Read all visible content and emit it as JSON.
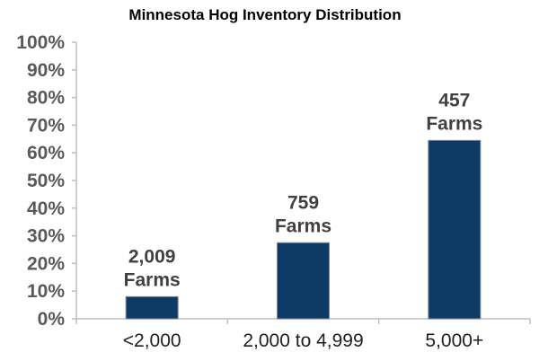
{
  "chart_data": {
    "type": "bar",
    "title": "Minnesota Hog Inventory Distribution",
    "xlabel": "",
    "ylabel": "",
    "categories": [
      "<2,000",
      "2,000 to 4,999",
      "5,000+"
    ],
    "values": [
      8,
      27.5,
      64.5
    ],
    "data_labels": [
      [
        "2,009",
        "Farms"
      ],
      [
        "759",
        "Farms"
      ],
      [
        "457",
        "Farms"
      ]
    ],
    "ylim": [
      0,
      100
    ],
    "yticks": [
      {
        "value": 0,
        "label": "0%"
      },
      {
        "value": 10,
        "label": "10%"
      },
      {
        "value": 20,
        "label": "20%"
      },
      {
        "value": 30,
        "label": "30%"
      },
      {
        "value": 40,
        "label": "40%"
      },
      {
        "value": 50,
        "label": "50%"
      },
      {
        "value": 60,
        "label": "60%"
      },
      {
        "value": 70,
        "label": "70%"
      },
      {
        "value": 80,
        "label": "80%"
      },
      {
        "value": 90,
        "label": "90%"
      },
      {
        "value": 100,
        "label": "100%"
      }
    ],
    "grid": false,
    "legend": "none",
    "bar_color": "#0e3a66",
    "bar_edge_color": "#7f8a96",
    "axis_color": "#bfbfbf"
  }
}
